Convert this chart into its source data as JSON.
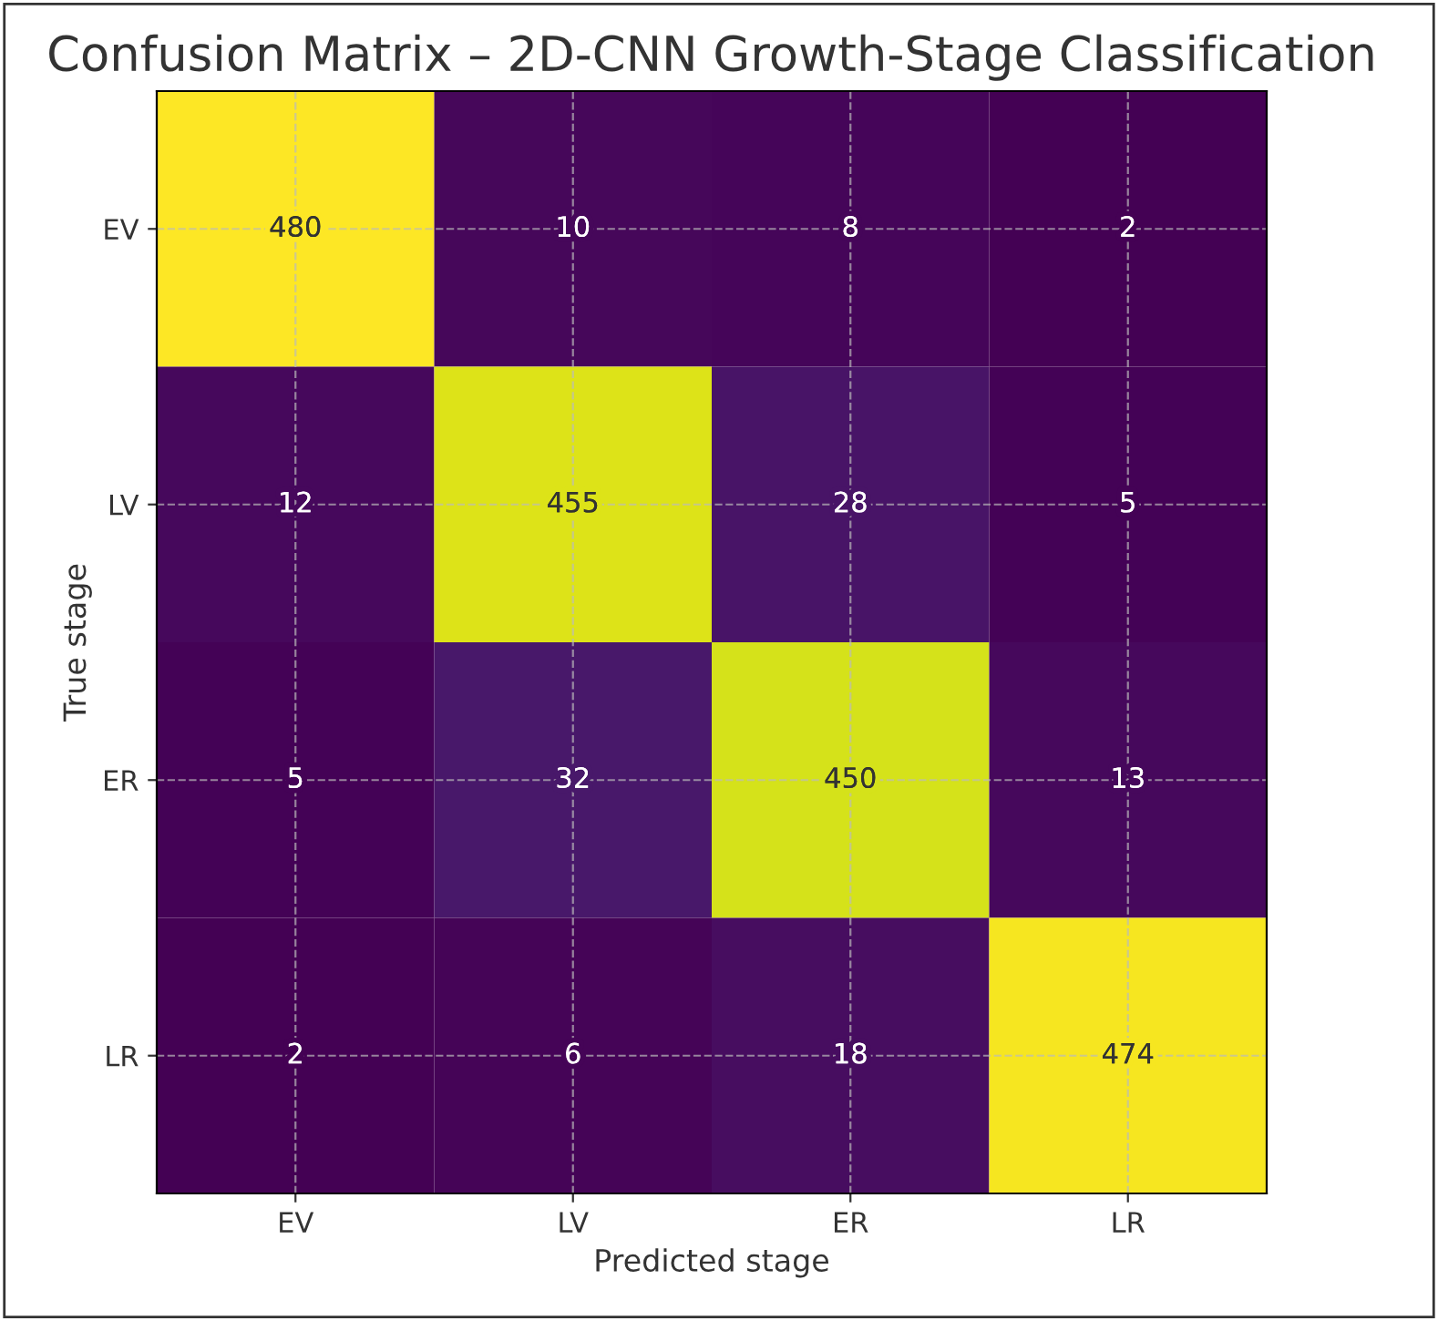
{
  "chart_data": {
    "type": "heatmap",
    "title": "Confusion Matrix – 2D-CNN Growth-Stage Classification",
    "xlabel": "Predicted stage",
    "ylabel": "True stage",
    "categories": [
      "EV",
      "LV",
      "ER",
      "LR"
    ],
    "y_categories": [
      "EV",
      "LV",
      "ER",
      "LR"
    ],
    "cells": [
      [
        480,
        10,
        8,
        2
      ],
      [
        12,
        455,
        28,
        5
      ],
      [
        5,
        32,
        450,
        13
      ],
      [
        2,
        6,
        18,
        474
      ]
    ],
    "data_labels": true,
    "grid": true
  }
}
